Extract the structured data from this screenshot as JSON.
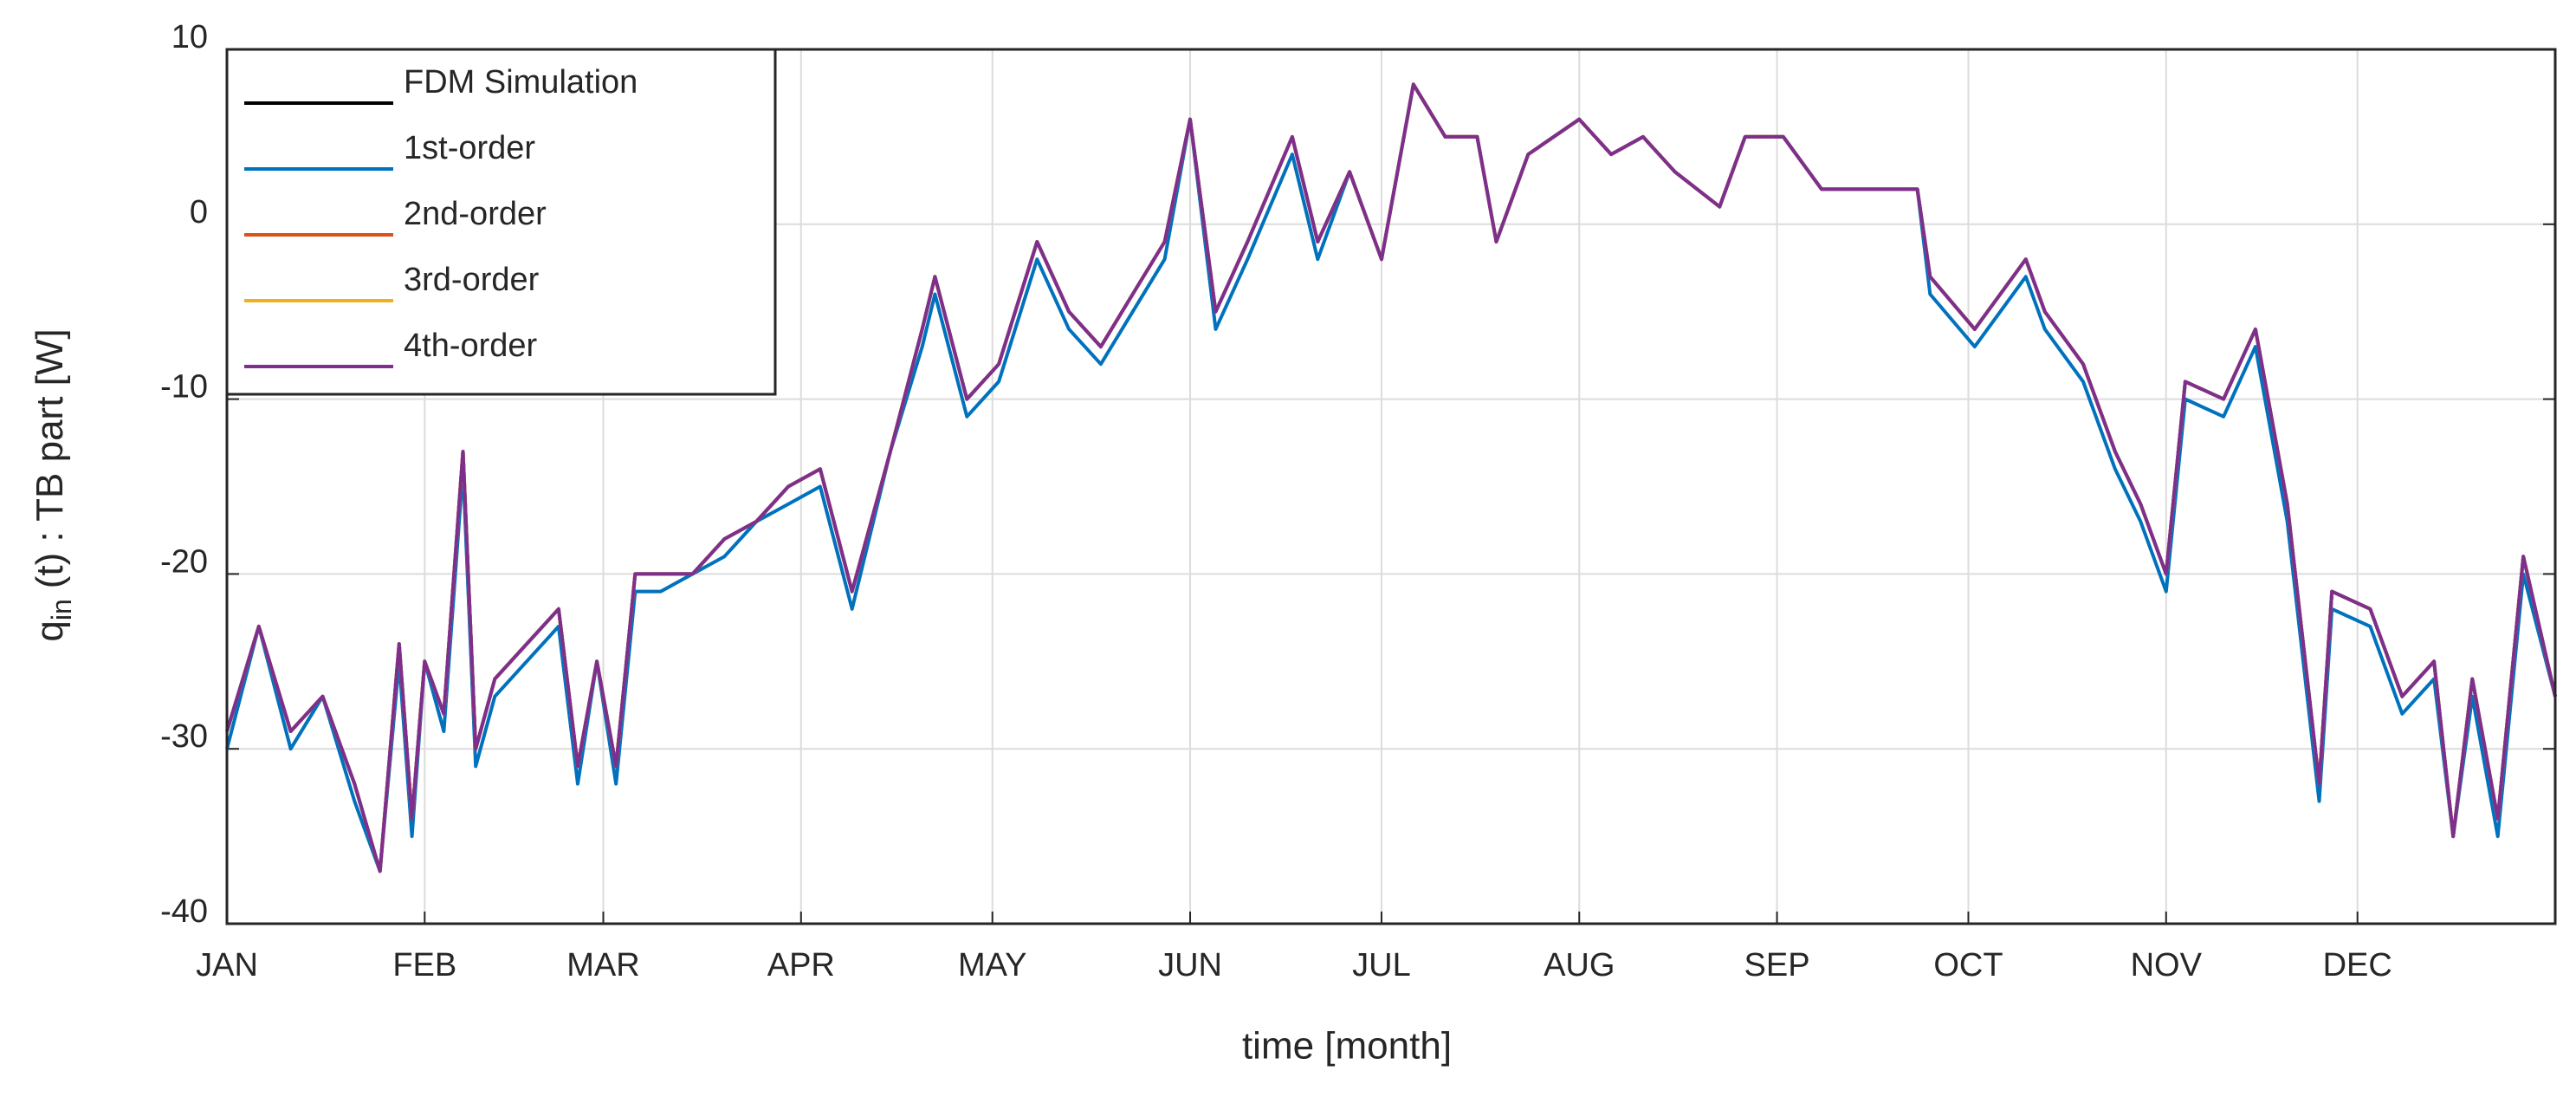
{
  "chart_data": {
    "type": "line",
    "x_label": "time [month]",
    "y_label": "q",
    "y_label_sub": "in",
    "y_label_rest": "(t) : TB part [W]",
    "x": [
      0,
      5,
      10,
      15,
      20,
      24,
      27,
      29,
      31,
      34,
      37,
      39,
      42,
      47,
      52,
      55,
      58,
      61,
      64,
      68,
      73,
      78,
      83,
      88,
      93,
      98,
      104,
      109,
      111,
      116,
      121,
      127,
      132,
      137,
      142,
      147,
      151,
      155,
      160,
      167,
      171,
      176,
      181,
      186,
      191,
      196,
      199,
      204,
      212,
      217,
      222,
      227,
      234,
      238,
      244,
      250,
      258,
      265,
      267,
      274,
      282,
      285,
      291,
      296,
      300,
      304,
      307,
      313,
      318,
      323,
      328,
      330,
      336,
      341,
      346,
      349,
      352,
      356,
      360,
      365
    ],
    "series": [
      {
        "name": "FDM Simulation",
        "color": "#000000",
        "values": [
          -29,
          -23,
          -29,
          -27,
          -32,
          -37,
          -24,
          -34,
          -25,
          -28,
          -13,
          -30,
          -26,
          -24,
          -22,
          -31,
          -25,
          -31,
          -20,
          -20,
          -20,
          -18,
          -17,
          -15,
          -14,
          -21,
          -13,
          -6,
          -3,
          -10,
          -8,
          -1,
          -5,
          -7,
          -4,
          -1,
          6,
          -5,
          -1,
          5,
          -1,
          3,
          -2,
          8,
          5,
          5,
          -1,
          4,
          6,
          4,
          5,
          3,
          1,
          5,
          5,
          2,
          2,
          2,
          -3,
          -6,
          -2,
          -5,
          -8,
          -13,
          -16,
          -20,
          -9,
          -10,
          -6,
          -16,
          -32,
          -21,
          -22,
          -27,
          -25,
          -35,
          -26,
          -34,
          -19,
          -27
        ]
      },
      {
        "name": "1st-order",
        "color": "#0072bd",
        "values": [
          -30,
          -23,
          -30,
          -27,
          -33,
          -37,
          -25,
          -35,
          -25,
          -29,
          -14,
          -31,
          -27,
          -25,
          -23,
          -32,
          -25,
          -32,
          -21,
          -21,
          -20,
          -19,
          -17,
          -16,
          -15,
          -22,
          -13,
          -7,
          -4,
          -11,
          -9,
          -2,
          -6,
          -8,
          -5,
          -2,
          6,
          -6,
          -2,
          4,
          -2,
          3,
          -2,
          8,
          5,
          5,
          -1,
          4,
          6,
          4,
          5,
          3,
          1,
          5,
          5,
          2,
          2,
          2,
          -4,
          -7,
          -3,
          -6,
          -9,
          -14,
          -17,
          -21,
          -10,
          -11,
          -7,
          -17,
          -33,
          -22,
          -23,
          -28,
          -26,
          -35,
          -27,
          -35,
          -20,
          -27
        ]
      },
      {
        "name": "2nd-order",
        "color": "#d95319",
        "values": [
          -29,
          -23,
          -29,
          -27,
          -32,
          -37,
          -24,
          -34,
          -25,
          -28,
          -13,
          -30,
          -26,
          -24,
          -22,
          -31,
          -25,
          -31,
          -20,
          -20,
          -20,
          -18,
          -17,
          -15,
          -14,
          -21,
          -13,
          -6,
          -3,
          -10,
          -8,
          -1,
          -5,
          -7,
          -4,
          -1,
          6,
          -5,
          -1,
          5,
          -1,
          3,
          -2,
          8,
          5,
          5,
          -1,
          4,
          6,
          4,
          5,
          3,
          1,
          5,
          5,
          2,
          2,
          2,
          -3,
          -6,
          -2,
          -5,
          -8,
          -13,
          -16,
          -20,
          -9,
          -10,
          -6,
          -16,
          -32,
          -21,
          -22,
          -27,
          -25,
          -35,
          -26,
          -34,
          -19,
          -27
        ]
      },
      {
        "name": "3rd-order",
        "color": "#edb120",
        "values": [
          -29,
          -23,
          -29,
          -27,
          -32,
          -37,
          -24,
          -34,
          -25,
          -28,
          -13,
          -30,
          -26,
          -24,
          -22,
          -31,
          -25,
          -31,
          -20,
          -20,
          -20,
          -18,
          -17,
          -15,
          -14,
          -21,
          -13,
          -6,
          -3,
          -10,
          -8,
          -1,
          -5,
          -7,
          -4,
          -1,
          6,
          -5,
          -1,
          5,
          -1,
          3,
          -2,
          8,
          5,
          5,
          -1,
          4,
          6,
          4,
          5,
          3,
          1,
          5,
          5,
          2,
          2,
          2,
          -3,
          -6,
          -2,
          -5,
          -8,
          -13,
          -16,
          -20,
          -9,
          -10,
          -6,
          -16,
          -32,
          -21,
          -22,
          -27,
          -25,
          -35,
          -26,
          -34,
          -19,
          -27
        ]
      },
      {
        "name": "4th-order",
        "color": "#7e2f8e",
        "values": [
          -29,
          -23,
          -29,
          -27,
          -32,
          -37,
          -24,
          -34,
          -25,
          -28,
          -13,
          -30,
          -26,
          -24,
          -22,
          -31,
          -25,
          -31,
          -20,
          -20,
          -20,
          -18,
          -17,
          -15,
          -14,
          -21,
          -13,
          -6,
          -3,
          -10,
          -8,
          -1,
          -5,
          -7,
          -4,
          -1,
          6,
          -5,
          -1,
          5,
          -1,
          3,
          -2,
          8,
          5,
          5,
          -1,
          4,
          6,
          4,
          5,
          3,
          1,
          5,
          5,
          2,
          2,
          2,
          -3,
          -6,
          -2,
          -5,
          -8,
          -13,
          -16,
          -20,
          -9,
          -10,
          -6,
          -16,
          -32,
          -21,
          -22,
          -27,
          -25,
          -35,
          -26,
          -34,
          -19,
          -27
        ]
      }
    ],
    "xlim": [
      0,
      365
    ],
    "xticks": [
      {
        "value": 0,
        "label": "JAN"
      },
      {
        "value": 31,
        "label": "FEB"
      },
      {
        "value": 59,
        "label": "MAR"
      },
      {
        "value": 90,
        "label": "APR"
      },
      {
        "value": 120,
        "label": "MAY"
      },
      {
        "value": 151,
        "label": "JUN"
      },
      {
        "value": 181,
        "label": "JUL"
      },
      {
        "value": 212,
        "label": "AUG"
      },
      {
        "value": 243,
        "label": "SEP"
      },
      {
        "value": 273,
        "label": "OCT"
      },
      {
        "value": 304,
        "label": "NOV"
      },
      {
        "value": 334,
        "label": "DEC"
      }
    ],
    "ylim": [
      -40,
      10
    ],
    "yticks": [
      -40,
      -30,
      -20,
      -10,
      0,
      10
    ],
    "grid": true,
    "legend": "upper-left"
  }
}
